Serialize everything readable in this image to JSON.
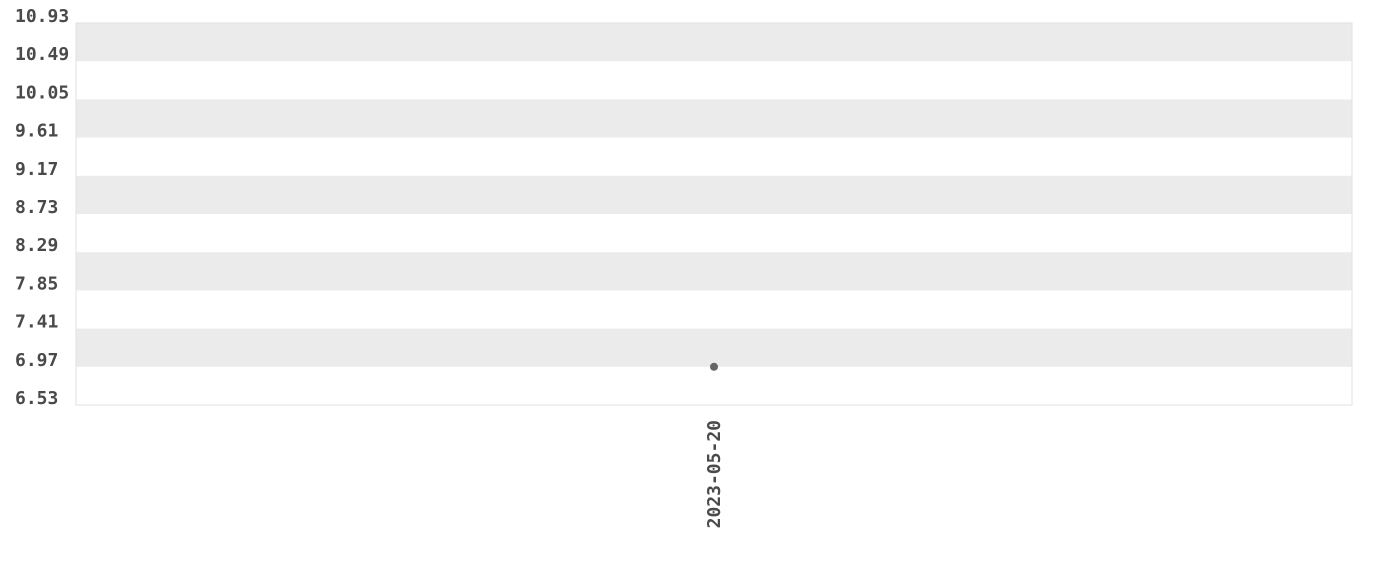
{
  "chart_data": {
    "type": "scatter",
    "title": "",
    "xlabel": "",
    "ylabel": "",
    "x_tick_labels": [
      "2023-05-20"
    ],
    "y_tick_labels": [
      "10.93",
      "10.49",
      "10.05",
      "9.61",
      "9.17",
      "8.73",
      "8.29",
      "7.85",
      "7.41",
      "6.97",
      "6.53"
    ],
    "ylim": [
      6.53,
      10.93
    ],
    "grid": "alternating horizontal bands",
    "band_color": "#ebebeb",
    "point_color": "#666666",
    "points": [
      {
        "x": "2023-05-20",
        "y": 6.97
      }
    ]
  }
}
